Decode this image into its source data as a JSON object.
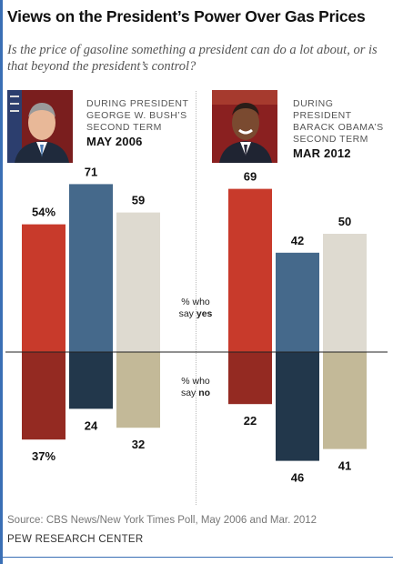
{
  "header": {
    "title": "Views on the President’s Power Over Gas Prices",
    "subtitle": "Is the price of gasoline something a president can do a lot about, or is that beyond the president’s control?"
  },
  "panels": [
    {
      "caption_lines": [
        "DURING PRESIDENT",
        "GEORGE W. BUSH’S",
        "SECOND TERM"
      ],
      "date": "MAY 2006",
      "photo": "george-w-bush-portrait"
    },
    {
      "caption_lines": [
        "DURING PRESIDENT",
        "BARACK OBAMA’S",
        "SECOND TERM"
      ],
      "date": "MAR 2012",
      "photo": "barack-obama-portrait"
    }
  ],
  "notes": {
    "yes_prefix": "% who",
    "yes_middle": "say ",
    "yes_bold": "yes",
    "no_prefix": "% who",
    "no_middle": "say ",
    "no_bold": "no"
  },
  "footer": {
    "source": "Source: CBS News/New York Times Poll, May 2006 and Mar. 2012",
    "org": "PEW RESEARCH CENTER"
  },
  "colors": {
    "yes": [
      "#c83a2b",
      "#45698b",
      "#dedad0"
    ],
    "no": [
      "#942a22",
      "#22374b",
      "#c3b998"
    ],
    "photo_bg_bush": "#7a1e1e",
    "photo_bg_obama": "#8a2020"
  },
  "chart_data": [
    {
      "type": "bar",
      "panel": "MAY 2006",
      "categories": [
        "1",
        "2",
        "3"
      ],
      "series": [
        {
          "values": [
            54,
            71,
            59
          ],
          "labels": [
            "54%",
            "71",
            "59"
          ]
        },
        {
          "values": [
            37,
            24,
            32
          ],
          "labels": [
            "37%",
            "24",
            "32"
          ]
        }
      ]
    },
    {
      "type": "bar",
      "panel": "MAR 2012",
      "categories": [
        "1",
        "2",
        "3"
      ],
      "series": [
        {
          "values": [
            69,
            42,
            50
          ],
          "labels": [
            "69",
            "42",
            "50"
          ]
        },
        {
          "values": [
            22,
            46,
            41
          ],
          "labels": [
            "22",
            "46",
            "41"
          ]
        }
      ]
    }
  ]
}
